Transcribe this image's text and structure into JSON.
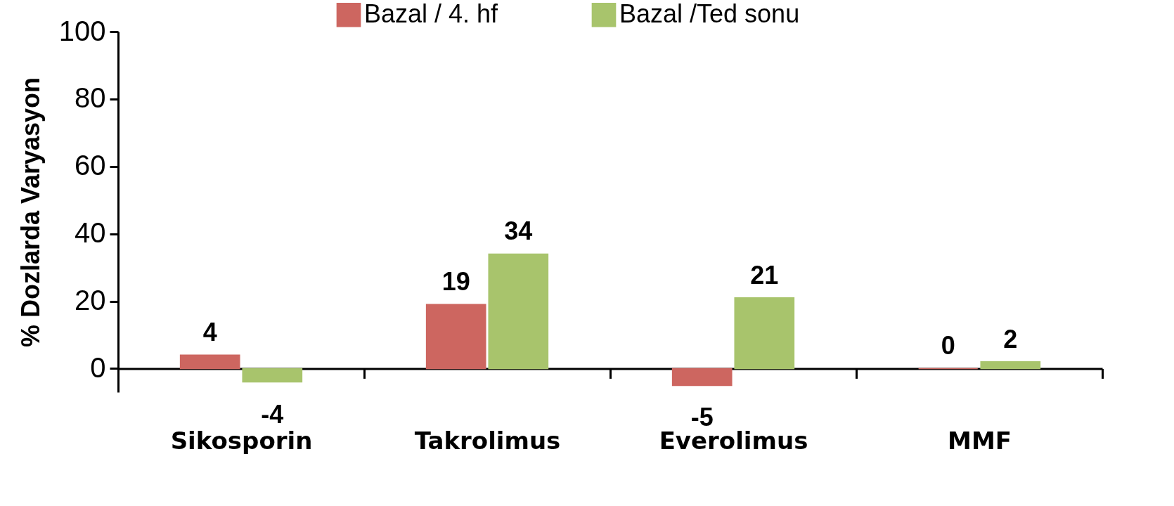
{
  "chart_data": {
    "type": "bar",
    "ylabel": "% Dozlarda Varyasyon",
    "categories": [
      "Sikosporin",
      "Takrolimus",
      "Everolimus",
      "MMF"
    ],
    "series": [
      {
        "name": "Bazal / 4. hf",
        "color": "#cd6660",
        "values": [
          4,
          19,
          -5,
          0
        ]
      },
      {
        "name": "Bazal /Ted sonu",
        "color": "#a8c46c",
        "values": [
          -4,
          34,
          21,
          2
        ]
      }
    ],
    "ylim": [
      -7,
      100
    ],
    "yticks": [
      0,
      20,
      40,
      60,
      80,
      100
    ],
    "data_labels": true,
    "grid": false,
    "legend": "top"
  }
}
